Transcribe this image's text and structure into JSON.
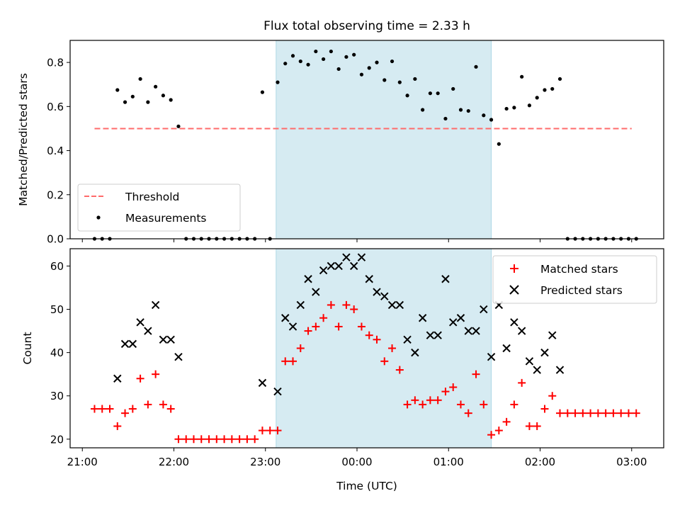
{
  "chart_data": [
    {
      "type": "scatter",
      "title": "Flux total observing time = 2.33 h",
      "xlabel": "",
      "ylabel": "Matched/Predicted stars",
      "ylim": [
        0,
        0.9
      ],
      "yticks": [
        "0.0",
        "0.2",
        "0.4",
        "0.6",
        "0.8"
      ],
      "xlim": [
        "20:52",
        "03:21"
      ],
      "shaded_interval": [
        "23:07",
        "01:28"
      ],
      "shade_color": "#add8e6",
      "grid": false,
      "legend_position": "lower-left",
      "threshold": {
        "name": "Threshold",
        "value": 0.5,
        "x_start": "21:08",
        "x_end": "03:00",
        "color": "#ff6b6b"
      },
      "series": [
        {
          "name": "Measurements",
          "color": "#000000",
          "x": [
            "21:08",
            "21:13",
            "21:18",
            "21:23",
            "21:28",
            "21:33",
            "21:38",
            "21:43",
            "21:48",
            "21:53",
            "21:58",
            "22:03",
            "22:08",
            "22:13",
            "22:18",
            "22:23",
            "22:28",
            "22:33",
            "22:38",
            "22:43",
            "22:48",
            "22:53",
            "22:58",
            "23:03",
            "23:08",
            "23:13",
            "23:18",
            "23:23",
            "23:28",
            "23:33",
            "23:38",
            "23:43",
            "23:48",
            "23:53",
            "23:58",
            "00:03",
            "00:08",
            "00:13",
            "00:18",
            "00:23",
            "00:28",
            "00:33",
            "00:38",
            "00:43",
            "00:48",
            "00:53",
            "00:58",
            "01:03",
            "01:08",
            "01:13",
            "01:18",
            "01:23",
            "01:28",
            "01:33",
            "01:38",
            "01:43",
            "01:48",
            "01:53",
            "01:58",
            "02:03",
            "02:08",
            "02:13",
            "02:18",
            "02:23",
            "02:28",
            "02:33",
            "02:38",
            "02:43",
            "02:48",
            "02:53",
            "02:58",
            "03:03"
          ],
          "y": [
            0.0,
            0.0,
            0.0,
            0.675,
            0.62,
            0.645,
            0.725,
            0.62,
            0.69,
            0.65,
            0.63,
            0.51,
            0.0,
            0.0,
            0.0,
            0.0,
            0.0,
            0.0,
            0.0,
            0.0,
            0.0,
            0.0,
            0.665,
            0.0,
            0.71,
            0.795,
            0.83,
            0.805,
            0.79,
            0.85,
            0.815,
            0.85,
            0.77,
            0.825,
            0.835,
            0.745,
            0.775,
            0.8,
            0.72,
            0.805,
            0.71,
            0.65,
            0.725,
            0.585,
            0.66,
            0.66,
            0.545,
            0.68,
            0.585,
            0.58,
            0.78,
            0.56,
            0.54,
            0.43,
            0.59,
            0.595,
            0.735,
            0.605,
            0.64,
            0.675,
            0.68,
            0.725,
            0.0,
            0.0,
            0.0,
            0.0,
            0.0,
            0.0,
            0.0,
            0.0,
            0.0,
            0.0
          ]
        }
      ],
      "legend": [
        {
          "label": "Threshold",
          "kind": "dashed-line",
          "color": "#ff6b6b"
        },
        {
          "label": "Measurements",
          "kind": "dot",
          "color": "#000000"
        }
      ]
    },
    {
      "type": "scatter",
      "title": "",
      "xlabel": "Time (UTC)",
      "ylabel": "Count",
      "ylim": [
        18,
        64
      ],
      "yticks": [
        "20",
        "30",
        "40",
        "50",
        "60"
      ],
      "xlim": [
        "20:52",
        "03:21"
      ],
      "xticks": [
        "21:00",
        "22:00",
        "23:00",
        "00:00",
        "01:00",
        "02:00",
        "03:00"
      ],
      "shaded_interval": [
        "23:07",
        "01:28"
      ],
      "shade_color": "#add8e6",
      "grid": false,
      "legend_position": "top-right",
      "series": [
        {
          "name": "Matched stars",
          "marker": "plus",
          "color": "#ff0000",
          "x": [
            "21:08",
            "21:13",
            "21:18",
            "21:23",
            "21:28",
            "21:33",
            "21:38",
            "21:43",
            "21:48",
            "21:53",
            "21:58",
            "22:03",
            "22:08",
            "22:13",
            "22:18",
            "22:23",
            "22:28",
            "22:33",
            "22:38",
            "22:43",
            "22:48",
            "22:53",
            "22:58",
            "23:03",
            "23:08",
            "23:13",
            "23:18",
            "23:23",
            "23:28",
            "23:33",
            "23:38",
            "23:43",
            "23:48",
            "23:53",
            "23:58",
            "00:03",
            "00:08",
            "00:13",
            "00:18",
            "00:23",
            "00:28",
            "00:33",
            "00:38",
            "00:43",
            "00:48",
            "00:53",
            "00:58",
            "01:03",
            "01:08",
            "01:13",
            "01:18",
            "01:23",
            "01:28",
            "01:33",
            "01:38",
            "01:43",
            "01:48",
            "01:53",
            "01:58",
            "02:03",
            "02:08",
            "02:13",
            "02:18",
            "02:23",
            "02:28",
            "02:33",
            "02:38",
            "02:43",
            "02:48",
            "02:53",
            "02:58",
            "03:03"
          ],
          "y": [
            27,
            27,
            27,
            23,
            26,
            27,
            34,
            28,
            35,
            28,
            27,
            20,
            20,
            20,
            20,
            20,
            20,
            20,
            20,
            20,
            20,
            20,
            22,
            22,
            22,
            38,
            38,
            41,
            45,
            46,
            48,
            51,
            46,
            51,
            50,
            46,
            44,
            43,
            38,
            41,
            36,
            28,
            29,
            28,
            29,
            29,
            31,
            32,
            28,
            26,
            35,
            28,
            21,
            22,
            24,
            28,
            33,
            23,
            23,
            27,
            30,
            26,
            26,
            26,
            26,
            26,
            26,
            26,
            26,
            26,
            26,
            26
          ]
        },
        {
          "name": "Predicted stars",
          "marker": "x",
          "color": "#000000",
          "x": [
            "21:23",
            "21:28",
            "21:33",
            "21:38",
            "21:43",
            "21:48",
            "21:53",
            "21:58",
            "22:03",
            "22:58",
            "23:08",
            "23:13",
            "23:18",
            "23:23",
            "23:28",
            "23:33",
            "23:38",
            "23:43",
            "23:48",
            "23:53",
            "23:58",
            "00:03",
            "00:08",
            "00:13",
            "00:18",
            "00:23",
            "00:28",
            "00:33",
            "00:38",
            "00:43",
            "00:48",
            "00:53",
            "00:58",
            "01:03",
            "01:08",
            "01:13",
            "01:18",
            "01:23",
            "01:28",
            "01:33",
            "01:38",
            "01:43",
            "01:48",
            "01:53",
            "01:58",
            "02:03",
            "02:08",
            "02:13"
          ],
          "y": [
            34,
            42,
            42,
            47,
            45,
            51,
            43,
            43,
            39,
            33,
            31,
            48,
            46,
            51,
            57,
            54,
            59,
            60,
            60,
            62,
            60,
            62,
            57,
            54,
            53,
            51,
            51,
            43,
            40,
            48,
            44,
            44,
            57,
            47,
            48,
            45,
            45,
            50,
            39,
            51,
            41,
            47,
            45,
            38,
            36,
            40,
            44,
            36
          ]
        }
      ],
      "legend": [
        {
          "label": "Matched stars",
          "kind": "plus",
          "color": "#ff0000"
        },
        {
          "label": "Predicted stars",
          "kind": "x",
          "color": "#000000"
        }
      ]
    }
  ]
}
